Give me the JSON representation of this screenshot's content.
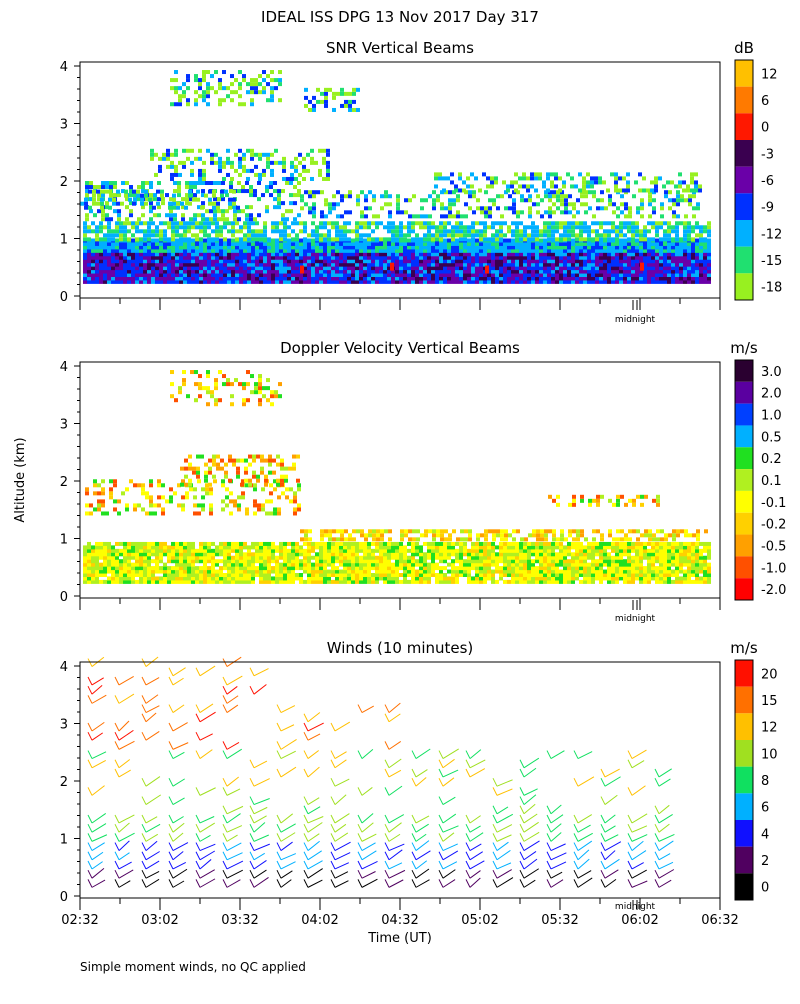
{
  "page": {
    "title": "IDEAL ISS DPG  13 Nov 2017 Day 317",
    "footnote": "Simple moment winds, no QC applied",
    "y_axis_label": "Altitude (km)",
    "x_axis_label": "Time (UT)",
    "midnight_label": "midnight"
  },
  "chart_data": [
    {
      "type": "heatmap",
      "title": "SNR Vertical Beams",
      "ylim": [
        0,
        4
      ],
      "yticks": [
        "0",
        "1",
        "2",
        "3",
        "4"
      ],
      "colorbar": {
        "unit": "dB",
        "labels": [
          "12",
          "6",
          "0",
          "-3",
          "-6",
          "-9",
          "-12",
          "-15",
          "-18"
        ],
        "colors": [
          "#ffc000",
          "#ff7a00",
          "#ff1800",
          "#3a0050",
          "#6a00a8",
          "#0030ff",
          "#00b0ff",
          "#20e070",
          "#98f020"
        ]
      }
    },
    {
      "type": "heatmap",
      "title": "Doppler Velocity Vertical Beams",
      "ylim": [
        0,
        4
      ],
      "yticks": [
        "0",
        "1",
        "2",
        "3",
        "4"
      ],
      "colorbar": {
        "unit": "m/s",
        "labels": [
          "3.0",
          "2.0",
          "1.0",
          "0.5",
          "0.2",
          "0.1",
          "-0.1",
          "-0.2",
          "-0.5",
          "-1.0",
          "-2.0"
        ],
        "colors": [
          "#2a0030",
          "#5a00a0",
          "#0040ff",
          "#00b0ff",
          "#20e020",
          "#b0f020",
          "#ffff00",
          "#ffd000",
          "#ffa000",
          "#ff5000",
          "#ff0000"
        ]
      }
    },
    {
      "type": "scatter",
      "title": "Winds (10 minutes)",
      "ylim": [
        0,
        4
      ],
      "yticks": [
        "0",
        "1",
        "2",
        "3",
        "4"
      ],
      "xticks": [
        "02:32",
        "03:02",
        "03:32",
        "04:02",
        "04:32",
        "05:02",
        "05:32",
        "06:02",
        "06:32"
      ],
      "colorbar": {
        "unit": "m/s",
        "labels": [
          "20",
          "15",
          "12",
          "10",
          "8",
          "6",
          "4",
          "2",
          "0"
        ],
        "colors": [
          "#ff1000",
          "#ff7000",
          "#ffc000",
          "#a0e020",
          "#10e060",
          "#00b0ff",
          "#1010ff",
          "#500060",
          "#000000"
        ]
      }
    }
  ]
}
